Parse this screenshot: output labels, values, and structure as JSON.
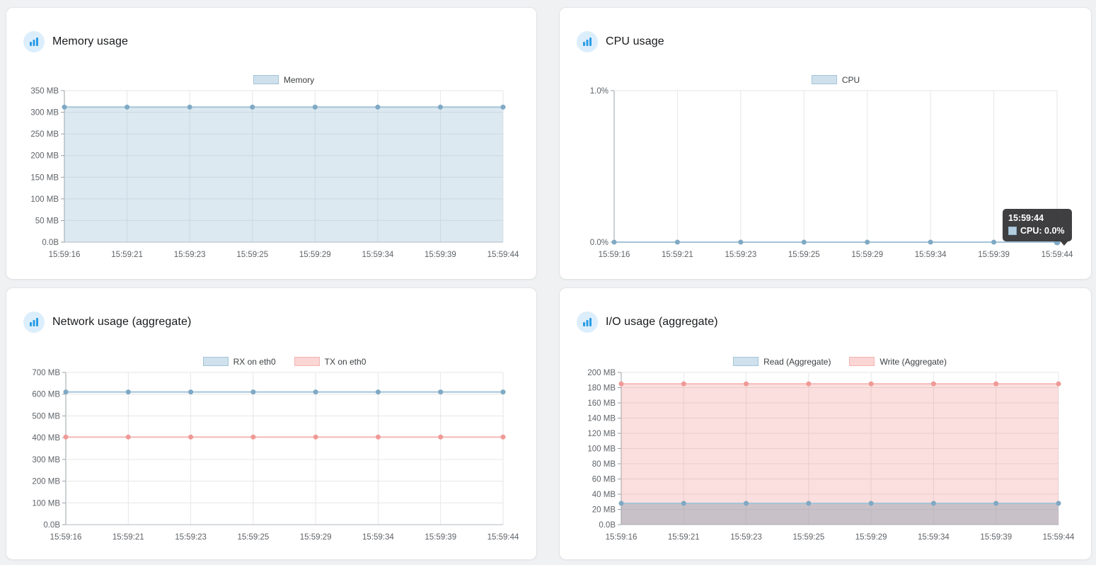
{
  "panels": [
    {
      "title": "Memory usage"
    },
    {
      "title": "CPU usage"
    },
    {
      "title": "Network usage (aggregate)"
    },
    {
      "title": "I/O usage (aggregate)"
    }
  ],
  "tooltip": {
    "time": "15:59:44",
    "label": "CPU: 0.0%"
  },
  "chart_data": [
    {
      "type": "area",
      "title": "Memory usage",
      "x": [
        "15:59:16",
        "15:59:21",
        "15:59:23",
        "15:59:25",
        "15:59:29",
        "15:59:34",
        "15:59:39",
        "15:59:44"
      ],
      "y_ticks": [
        "350 MB",
        "300 MB",
        "250 MB",
        "200 MB",
        "150 MB",
        "100 MB",
        "50 MB",
        "0.0B"
      ],
      "ylim": [
        0,
        350
      ],
      "y_unit": "MB",
      "grid": true,
      "legend_position": "top",
      "series": [
        {
          "name": "Memory",
          "values": [
            312,
            312,
            312,
            312,
            312,
            312,
            312,
            312
          ],
          "line": "#a4c4d8",
          "point": "#7fa9c4",
          "fill": "rgba(154,192,214,0.35)",
          "swatch_bg": "#cfe1ec",
          "swatch_border": "#a4c4d8"
        }
      ]
    },
    {
      "type": "line",
      "title": "CPU usage",
      "x": [
        "15:59:16",
        "15:59:21",
        "15:59:23",
        "15:59:25",
        "15:59:29",
        "15:59:34",
        "15:59:39",
        "15:59:44"
      ],
      "y_ticks": [
        "1.0%",
        "0.0%"
      ],
      "ylim": [
        0,
        1
      ],
      "y_unit": "%",
      "grid": true,
      "legend_position": "top",
      "series": [
        {
          "name": "CPU",
          "values": [
            0,
            0,
            0,
            0,
            0,
            0,
            0,
            0
          ],
          "line": "#a4c4d8",
          "point": "#7fa9c4",
          "fill": null,
          "swatch_bg": "#cfe1ec",
          "swatch_border": "#a4c4d8",
          "highlight_last": true
        }
      ]
    },
    {
      "type": "line",
      "title": "Network usage (aggregate)",
      "x": [
        "15:59:16",
        "15:59:21",
        "15:59:23",
        "15:59:25",
        "15:59:29",
        "15:59:34",
        "15:59:39",
        "15:59:44"
      ],
      "y_ticks": [
        "700 MB",
        "600 MB",
        "500 MB",
        "400 MB",
        "300 MB",
        "200 MB",
        "100 MB",
        "0.0B"
      ],
      "ylim": [
        0,
        700
      ],
      "y_unit": "MB",
      "grid": true,
      "legend_position": "top",
      "series": [
        {
          "name": "RX on eth0",
          "values": [
            610,
            610,
            610,
            610,
            610,
            610,
            610,
            610
          ],
          "line": "#a4c4d8",
          "point": "#7fa9c4",
          "fill": null,
          "swatch_bg": "#cfe1ec",
          "swatch_border": "#a4c4d8"
        },
        {
          "name": "TX on eth0",
          "values": [
            403,
            403,
            403,
            403,
            403,
            403,
            403,
            403
          ],
          "line": "#f6bdba",
          "point": "#ef9a96",
          "fill": null,
          "swatch_bg": "#fbd6d5",
          "swatch_border": "#f3b5b3"
        }
      ]
    },
    {
      "type": "area",
      "title": "I/O usage (aggregate)",
      "x": [
        "15:59:16",
        "15:59:21",
        "15:59:23",
        "15:59:25",
        "15:59:29",
        "15:59:34",
        "15:59:39",
        "15:59:44"
      ],
      "y_ticks": [
        "200 MB",
        "180 MB",
        "160 MB",
        "140 MB",
        "120 MB",
        "100 MB",
        "80 MB",
        "60 MB",
        "40 MB",
        "20 MB",
        "0.0B"
      ],
      "ylim": [
        0,
        200
      ],
      "y_unit": "MB",
      "grid": true,
      "legend_position": "top",
      "series": [
        {
          "name": "Read (Aggregate)",
          "values": [
            28,
            28,
            28,
            28,
            28,
            28,
            28,
            28
          ],
          "line": "#a4c4d8",
          "point": "#7fa9c4",
          "fill": "rgba(139,158,173,0.45)",
          "swatch_bg": "#cfe1ec",
          "swatch_border": "#a4c4d8"
        },
        {
          "name": "Write (Aggregate)",
          "values": [
            185,
            185,
            185,
            185,
            185,
            185,
            185,
            185
          ],
          "line": "#f6bdba",
          "point": "#ef9a96",
          "fill": "rgba(242,150,147,0.30)",
          "swatch_bg": "#fbd6d5",
          "swatch_border": "#f3b5b3"
        }
      ]
    }
  ],
  "colors": {
    "page_bg": "#f0f1f2",
    "card_bg": "#ffffff",
    "accent_blue": "#2b9ce5",
    "icon_circle_bg": "#dceefc",
    "tooltip_bg": "#3a3a3c",
    "tick_label": "#5f6368",
    "gridline": "#e5e6e8"
  }
}
